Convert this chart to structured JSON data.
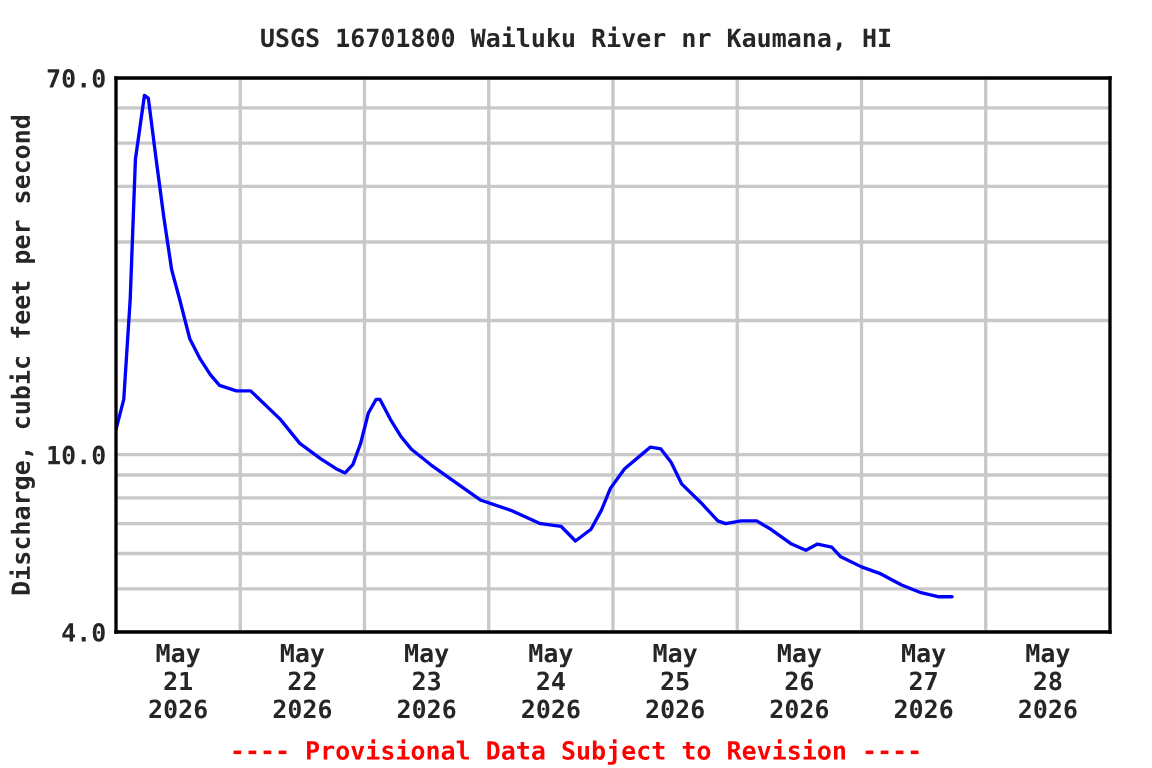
{
  "chart_data": {
    "type": "line",
    "title": "USGS 16701800 Wailuku River nr Kaumana, HI",
    "ylabel": "Discharge, cubic feet per second",
    "annotations": [
      "---- Provisional Data Subject to Revision ----"
    ],
    "x": [
      "2026-05-21T00:00",
      "2026-05-21T01:30",
      "2026-05-21T02:45",
      "2026-05-21T03:45",
      "2026-05-21T05:30",
      "2026-05-21T06:15",
      "2026-05-21T07:45",
      "2026-05-21T09:15",
      "2026-05-21T10:45",
      "2026-05-21T12:15",
      "2026-05-21T14:15",
      "2026-05-21T16:15",
      "2026-05-21T18:15",
      "2026-05-21T20:00",
      "2026-05-21T23:15",
      "2026-05-22T02:00",
      "2026-05-22T03:45",
      "2026-05-22T07:45",
      "2026-05-22T11:30",
      "2026-05-22T15:30",
      "2026-05-22T18:30",
      "2026-05-22T20:15",
      "2026-05-22T21:45",
      "2026-05-22T23:15",
      "2026-05-23T00:45",
      "2026-05-23T02:15",
      "2026-05-23T03:00",
      "2026-05-23T05:00",
      "2026-05-23T07:00",
      "2026-05-23T09:00",
      "2026-05-23T12:45",
      "2026-05-23T16:45",
      "2026-05-23T22:30",
      "2026-05-24T04:15",
      "2026-05-24T10:00",
      "2026-05-24T14:00",
      "2026-05-24T16:45",
      "2026-05-24T19:45",
      "2026-05-24T21:45",
      "2026-05-24T23:30",
      "2026-05-25T02:15",
      "2026-05-25T05:30",
      "2026-05-25T07:15",
      "2026-05-25T09:15",
      "2026-05-25T11:15",
      "2026-05-25T13:15",
      "2026-05-25T17:00",
      "2026-05-25T20:15",
      "2026-05-25T21:45",
      "2026-05-26T00:45",
      "2026-05-26T03:45",
      "2026-05-26T06:30",
      "2026-05-26T10:30",
      "2026-05-26T13:15",
      "2026-05-26T15:30",
      "2026-05-26T18:15",
      "2026-05-26T20:00",
      "2026-05-27T00:00",
      "2026-05-27T03:45",
      "2026-05-27T07:45",
      "2026-05-27T11:30",
      "2026-05-27T14:45",
      "2026-05-27T17:30"
    ],
    "series": [
      {
        "color": "#0000ff",
        "values": [
          11.4,
          13.3,
          22.4,
          46,
          64,
          63,
          46,
          34,
          26,
          22.4,
          18.2,
          16.4,
          15.1,
          14.3,
          13.9,
          13.9,
          13.3,
          12.0,
          10.6,
          9.8,
          9.3,
          9.1,
          9.5,
          10.6,
          12.4,
          13.3,
          13.3,
          12.0,
          11.0,
          10.3,
          9.5,
          8.8,
          7.9,
          7.5,
          7.0,
          6.9,
          6.4,
          6.8,
          7.5,
          8.4,
          9.3,
          10.0,
          10.4,
          10.3,
          9.6,
          8.6,
          7.8,
          7.1,
          7.0,
          7.1,
          7.1,
          6.8,
          6.3,
          6.1,
          6.3,
          6.2,
          5.9,
          5.6,
          5.4,
          5.1,
          4.9,
          4.8,
          4.8
        ]
      }
    ],
    "log": true,
    "xlim": [
      "2026-05-21T00:00",
      "2026-05-29T00:00"
    ],
    "xticks": [
      {
        "value": "2026-05-22T00:00",
        "label": null
      },
      {
        "value": "2026-05-23T00:00",
        "label": null
      },
      {
        "value": "2026-05-24T00:00",
        "label": null
      },
      {
        "value": "2026-05-25T00:00",
        "label": null
      },
      {
        "value": "2026-05-26T00:00",
        "label": null
      },
      {
        "value": "2026-05-27T00:00",
        "label": null
      },
      {
        "value": "2026-05-28T00:00",
        "label": null
      },
      {
        "value": "2026-05-21T12:00",
        "label": "May\n21\n2026"
      },
      {
        "value": "2026-05-22T12:00",
        "label": "May\n22\n2026"
      },
      {
        "value": "2026-05-23T12:00",
        "label": "May\n23\n2026"
      },
      {
        "value": "2026-05-24T12:00",
        "label": "May\n24\n2026"
      },
      {
        "value": "2026-05-25T12:00",
        "label": "May\n25\n2026"
      },
      {
        "value": "2026-05-26T12:00",
        "label": "May\n26\n2026"
      },
      {
        "value": "2026-05-27T12:00",
        "label": "May\n27\n2026"
      },
      {
        "value": "2026-05-28T12:00",
        "label": "May\n28\n2026"
      }
    ],
    "ylim": [
      4,
      70
    ],
    "yticks": [
      {
        "value": 4,
        "label": "4.0"
      },
      {
        "value": 5,
        "label": null
      },
      {
        "value": 6,
        "label": null
      },
      {
        "value": 7,
        "label": null
      },
      {
        "value": 8,
        "label": null
      },
      {
        "value": 9,
        "label": null
      },
      {
        "value": 10,
        "label": "10.0"
      },
      {
        "value": 20,
        "label": null
      },
      {
        "value": 30,
        "label": null
      },
      {
        "value": 40,
        "label": null
      },
      {
        "value": 50,
        "label": null
      },
      {
        "value": 60,
        "label": null
      },
      {
        "value": 70,
        "label": "70.0"
      }
    ],
    "grid": true,
    "legend": false,
    "marker": "none",
    "line_style": "solid"
  }
}
